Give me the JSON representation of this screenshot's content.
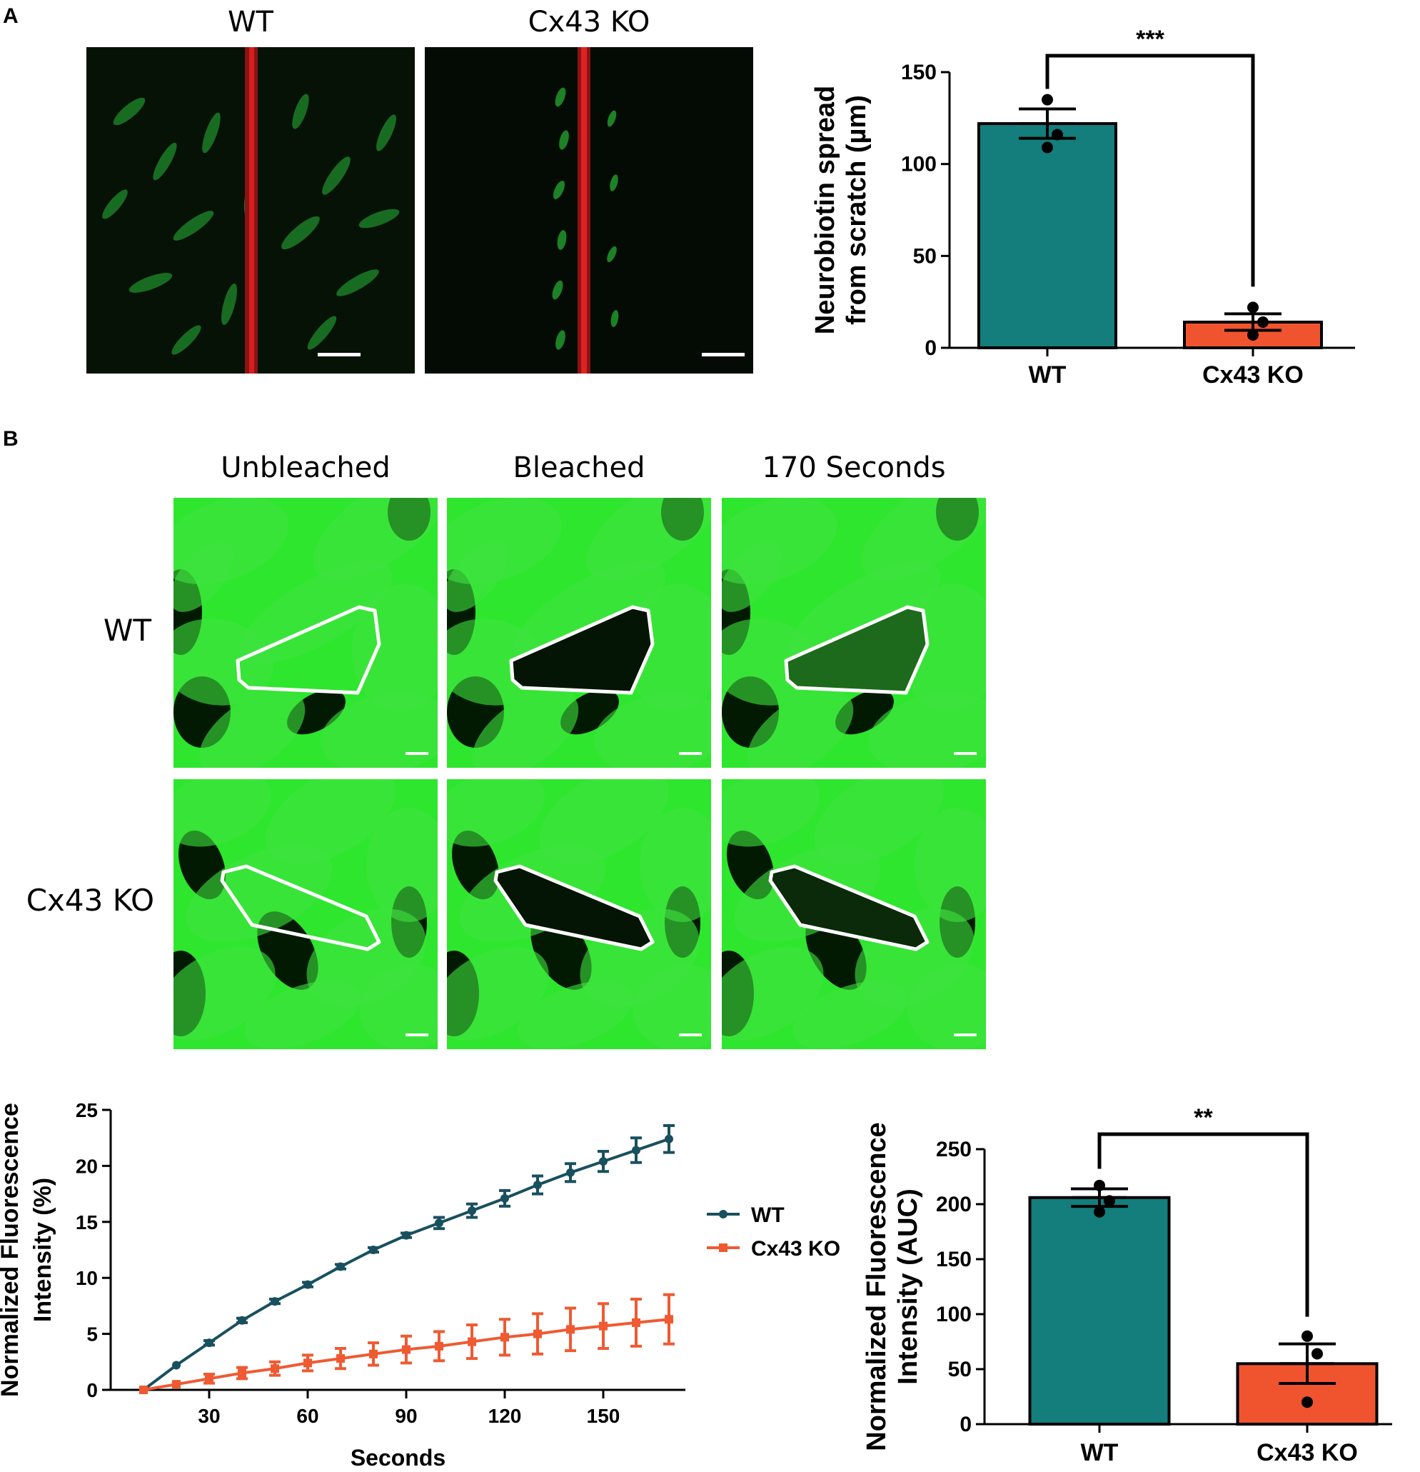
{
  "panel_a": {
    "letter": "A",
    "image_titles": [
      "WT",
      "Cx43 KO"
    ]
  },
  "panel_b": {
    "letter": "B",
    "column_titles": [
      "Unbleached",
      "Bleached",
      "170 Seconds"
    ],
    "row_labels": [
      "WT",
      "Cx43 KO"
    ]
  },
  "colors": {
    "wt_bar": "#137e7c",
    "ko_bar": "#f0542f",
    "wt_line": "#18505e",
    "ko_line": "#ef5a32",
    "micro_dark_green": "#0e3a0e",
    "micro_bright_green": "#2ee62e",
    "scratch_red": "#d81e1e"
  },
  "chart_data": [
    {
      "id": "neurobiotin",
      "type": "bar",
      "categories": [
        "WT",
        "Cx43 KO"
      ],
      "values": [
        122,
        14
      ],
      "sem": [
        8,
        4.5
      ],
      "points": [
        [
          135,
          116,
          109
        ],
        [
          22,
          14,
          7
        ]
      ],
      "ylabel": "Neurobiotin spread from scratch (µm)",
      "ylabel_lines": [
        "Neurobiotin spread",
        "from scratch (µm)"
      ],
      "ylim": [
        0,
        150
      ],
      "yticks": [
        0,
        50,
        100,
        150
      ],
      "significance": "***",
      "grid": false
    },
    {
      "id": "frap_time",
      "type": "line",
      "x": [
        10,
        20,
        30,
        40,
        50,
        60,
        70,
        80,
        90,
        100,
        110,
        120,
        130,
        140,
        150,
        160,
        170
      ],
      "series": [
        {
          "name": "WT",
          "values": [
            0,
            2.2,
            4.2,
            6.2,
            7.9,
            9.4,
            11.0,
            12.5,
            13.8,
            14.9,
            16.0,
            17.1,
            18.3,
            19.4,
            20.4,
            21.4,
            22.4
          ],
          "err": [
            0,
            0.1,
            0.2,
            0.2,
            0.2,
            0.2,
            0.2,
            0.2,
            0.2,
            0.5,
            0.6,
            0.7,
            0.8,
            0.8,
            0.9,
            1.1,
            1.2
          ]
        },
        {
          "name": "Cx43 KO",
          "values": [
            0,
            0.5,
            1.0,
            1.5,
            1.9,
            2.4,
            2.8,
            3.2,
            3.6,
            3.9,
            4.3,
            4.7,
            5.0,
            5.4,
            5.7,
            6.0,
            6.3
          ],
          "err": [
            0,
            0.1,
            0.4,
            0.5,
            0.6,
            0.7,
            0.9,
            1.0,
            1.2,
            1.3,
            1.5,
            1.6,
            1.8,
            1.9,
            2.0,
            2.1,
            2.2
          ]
        }
      ],
      "xlabel": "Seconds",
      "ylabel": "Normalized Fluorescence Intensity (%)",
      "ylabel_lines": [
        "Normalized Fluorescence",
        "Intensity (%)"
      ],
      "xlim": [
        0,
        175
      ],
      "xticks": [
        30,
        60,
        90,
        120,
        150
      ],
      "ylim": [
        0,
        25
      ],
      "yticks": [
        0,
        5,
        10,
        15,
        20,
        25
      ],
      "legend": "right",
      "grid": false
    },
    {
      "id": "frap_auc",
      "type": "bar",
      "categories": [
        "WT",
        "Cx43 KO"
      ],
      "values": [
        206,
        55
      ],
      "sem": [
        8,
        18
      ],
      "points": [
        [
          217,
          203,
          193
        ],
        [
          80,
          64,
          20
        ]
      ],
      "ylabel": "Normalized Fluorescence Intensity (AUC)",
      "ylabel_lines": [
        "Normalized Fluorescence",
        "Intensity (AUC)"
      ],
      "ylim": [
        0,
        250
      ],
      "yticks": [
        0,
        50,
        100,
        150,
        200,
        250
      ],
      "significance": "**",
      "grid": false
    }
  ]
}
